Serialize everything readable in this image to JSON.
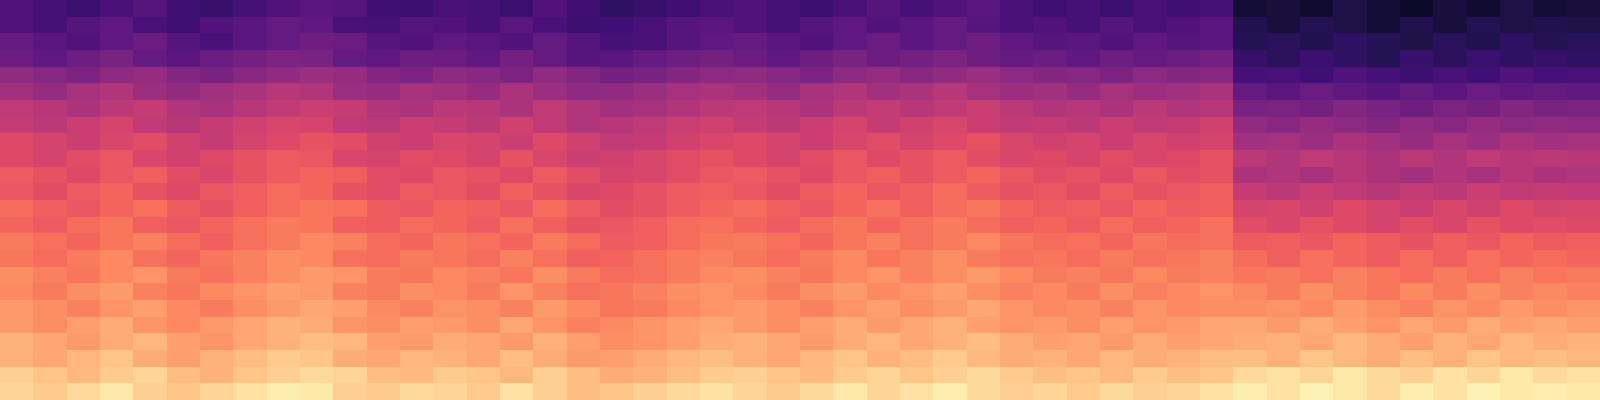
{
  "chart_data": {
    "type": "heatmap",
    "color": "magma",
    "tick_labels": false,
    "zlim": [
      -80,
      0
    ],
    "cells": [
      [
        -60,
        -62,
        -64,
        -61,
        -59,
        -63,
        -65,
        -62,
        -60,
        -58,
        -59,
        -63,
        -64,
        -61,
        -62,
        -64,
        -60,
        -63,
        -66,
        -65,
        -63,
        -61,
        -60,
        -62,
        -64,
        -61,
        -59,
        -62,
        -60,
        -58,
        -61,
        -63,
        -62,
        -64,
        -61,
        -63,
        -62,
        -72,
        -71,
        -73,
        -70,
        -72,
        -74,
        -71,
        -73,
        -70,
        -72,
        -71
      ],
      [
        -60,
        -62,
        -59,
        -57,
        -61,
        -63,
        -60,
        -58,
        -56,
        -57,
        -61,
        -62,
        -59,
        -60,
        -62,
        -58,
        -61,
        -64,
        -63,
        -61,
        -59,
        -58,
        -60,
        -62,
        -59,
        -57,
        -60,
        -58,
        -56,
        -59,
        -61,
        -60,
        -62,
        -59,
        -61,
        -60,
        -58,
        -69,
        -71,
        -68,
        -70,
        -72,
        -69,
        -71,
        -68,
        -70,
        -69,
        -70
      ],
      [
        -56,
        -58,
        -60,
        -57,
        -55,
        -59,
        -61,
        -58,
        -56,
        -54,
        -55,
        -59,
        -60,
        -57,
        -58,
        -60,
        -56,
        -59,
        -62,
        -61,
        -59,
        -57,
        -56,
        -58,
        -60,
        -57,
        -55,
        -58,
        -56,
        -54,
        -57,
        -59,
        -58,
        -60,
        -57,
        -59,
        -58,
        -68,
        -67,
        -69,
        -66,
        -68,
        -70,
        -67,
        -69,
        -66,
        -68,
        -67
      ],
      [
        -55,
        -57,
        -54,
        -52,
        -56,
        -58,
        -55,
        -53,
        -51,
        -52,
        -56,
        -57,
        -54,
        -55,
        -57,
        -53,
        -56,
        -59,
        -58,
        -56,
        -54,
        -53,
        -55,
        -57,
        -54,
        -52,
        -55,
        -53,
        -51,
        -54,
        -56,
        -55,
        -57,
        -54,
        -56,
        -55,
        -53,
        -65,
        -67,
        -64,
        -66,
        -68,
        -65,
        -67,
        -64,
        -66,
        -65,
        -66
      ],
      [
        -47,
        -49,
        -51,
        -48,
        -46,
        -50,
        -52,
        -49,
        -47,
        -45,
        -46,
        -50,
        -51,
        -48,
        -49,
        -51,
        -47,
        -50,
        -53,
        -52,
        -50,
        -48,
        -47,
        -49,
        -51,
        -48,
        -46,
        -49,
        -47,
        -45,
        -48,
        -50,
        -49,
        -51,
        -48,
        -50,
        -49,
        -62,
        -61,
        -63,
        -60,
        -62,
        -64,
        -61,
        -63,
        -60,
        -62,
        -61
      ],
      [
        -44,
        -46,
        -43,
        -41,
        -45,
        -47,
        -44,
        -42,
        -40,
        -41,
        -45,
        -46,
        -43,
        -44,
        -46,
        -42,
        -45,
        -48,
        -47,
        -45,
        -43,
        -42,
        -44,
        -46,
        -43,
        -41,
        -44,
        -42,
        -40,
        -43,
        -45,
        -44,
        -46,
        -43,
        -45,
        -44,
        -42,
        -56,
        -58,
        -55,
        -57,
        -59,
        -56,
        -58,
        -55,
        -57,
        -56,
        -57
      ],
      [
        -38,
        -40,
        -42,
        -39,
        -37,
        -41,
        -43,
        -40,
        -38,
        -36,
        -37,
        -41,
        -42,
        -39,
        -40,
        -42,
        -38,
        -41,
        -44,
        -43,
        -41,
        -39,
        -38,
        -40,
        -42,
        -39,
        -37,
        -40,
        -38,
        -36,
        -39,
        -41,
        -40,
        -42,
        -39,
        -41,
        -40,
        -52,
        -51,
        -53,
        -50,
        -52,
        -54,
        -51,
        -53,
        -50,
        -52,
        -51
      ],
      [
        -37,
        -39,
        -36,
        -34,
        -38,
        -40,
        -37,
        -35,
        -33,
        -34,
        -38,
        -39,
        -36,
        -37,
        -39,
        -35,
        -38,
        -41,
        -40,
        -38,
        -36,
        -35,
        -37,
        -39,
        -36,
        -34,
        -37,
        -35,
        -33,
        -36,
        -38,
        -37,
        -39,
        -36,
        -38,
        -37,
        -35,
        -47,
        -49,
        -46,
        -48,
        -50,
        -47,
        -49,
        -46,
        -48,
        -47,
        -48
      ],
      [
        -32,
        -34,
        -36,
        -33,
        -31,
        -35,
        -37,
        -34,
        -32,
        -30,
        -31,
        -35,
        -36,
        -33,
        -34,
        -36,
        -32,
        -35,
        -38,
        -37,
        -35,
        -33,
        -32,
        -34,
        -36,
        -33,
        -31,
        -34,
        -32,
        -30,
        -33,
        -35,
        -34,
        -36,
        -33,
        -35,
        -34,
        -44,
        -43,
        -45,
        -42,
        -44,
        -46,
        -43,
        -45,
        -42,
        -44,
        -43
      ],
      [
        -32,
        -34,
        -31,
        -29,
        -33,
        -35,
        -32,
        -30,
        -28,
        -29,
        -33,
        -34,
        -31,
        -32,
        -34,
        -30,
        -33,
        -36,
        -35,
        -33,
        -31,
        -30,
        -32,
        -34,
        -31,
        -29,
        -32,
        -30,
        -28,
        -31,
        -33,
        -32,
        -34,
        -31,
        -33,
        -32,
        -30,
        -39,
        -41,
        -38,
        -40,
        -42,
        -39,
        -41,
        -38,
        -40,
        -39,
        -40
      ],
      [
        -28,
        -30,
        -32,
        -29,
        -27,
        -31,
        -33,
        -30,
        -28,
        -26,
        -27,
        -31,
        -32,
        -29,
        -30,
        -32,
        -28,
        -31,
        -34,
        -33,
        -31,
        -29,
        -28,
        -30,
        -32,
        -29,
        -27,
        -30,
        -28,
        -26,
        -29,
        -31,
        -30,
        -32,
        -29,
        -31,
        -30,
        -42,
        -41,
        -43,
        -40,
        -42,
        -44,
        -41,
        -43,
        -40,
        -42,
        -41
      ],
      [
        -29,
        -31,
        -28,
        -26,
        -30,
        -32,
        -29,
        -27,
        -25,
        -26,
        -30,
        -31,
        -28,
        -29,
        -31,
        -27,
        -30,
        -33,
        -32,
        -30,
        -28,
        -27,
        -29,
        -31,
        -28,
        -26,
        -29,
        -27,
        -25,
        -28,
        -30,
        -29,
        -31,
        -28,
        -30,
        -29,
        -27,
        -37,
        -39,
        -36,
        -38,
        -40,
        -37,
        -39,
        -36,
        -38,
        -37,
        -38
      ],
      [
        -25,
        -27,
        -29,
        -26,
        -24,
        -28,
        -30,
        -27,
        -25,
        -23,
        -24,
        -28,
        -29,
        -26,
        -27,
        -29,
        -25,
        -28,
        -31,
        -30,
        -28,
        -26,
        -25,
        -27,
        -29,
        -26,
        -24,
        -27,
        -25,
        -23,
        -26,
        -28,
        -27,
        -29,
        -26,
        -28,
        -27,
        -34,
        -33,
        -35,
        -32,
        -34,
        -36,
        -33,
        -35,
        -32,
        -34,
        -33
      ],
      [
        -26,
        -28,
        -25,
        -23,
        -27,
        -29,
        -26,
        -24,
        -22,
        -23,
        -27,
        -28,
        -25,
        -26,
        -28,
        -24,
        -27,
        -30,
        -29,
        -27,
        -25,
        -24,
        -26,
        -28,
        -25,
        -23,
        -26,
        -24,
        -22,
        -25,
        -27,
        -26,
        -28,
        -25,
        -27,
        -26,
        -24,
        -31,
        -33,
        -30,
        -32,
        -34,
        -31,
        -33,
        -30,
        -32,
        -31,
        -32
      ],
      [
        -22,
        -24,
        -26,
        -23,
        -21,
        -25,
        -27,
        -24,
        -22,
        -20,
        -21,
        -25,
        -26,
        -23,
        -24,
        -26,
        -22,
        -25,
        -28,
        -27,
        -25,
        -23,
        -22,
        -24,
        -26,
        -23,
        -21,
        -24,
        -22,
        -20,
        -23,
        -25,
        -24,
        -26,
        -23,
        -25,
        -24,
        -28,
        -27,
        -29,
        -26,
        -28,
        -30,
        -27,
        -29,
        -26,
        -28,
        -27
      ],
      [
        -23,
        -25,
        -22,
        -20,
        -24,
        -26,
        -23,
        -21,
        -19,
        -20,
        -24,
        -25,
        -22,
        -23,
        -25,
        -21,
        -24,
        -27,
        -26,
        -24,
        -22,
        -21,
        -23,
        -25,
        -22,
        -20,
        -23,
        -21,
        -19,
        -22,
        -24,
        -23,
        -25,
        -22,
        -24,
        -23,
        -21,
        -25,
        -27,
        -24,
        -26,
        -28,
        -25,
        -27,
        -24,
        -26,
        -25,
        -26
      ],
      [
        -19,
        -21,
        -23,
        -20,
        -18,
        -22,
        -24,
        -21,
        -19,
        -17,
        -18,
        -22,
        -23,
        -20,
        -21,
        -23,
        -19,
        -22,
        -25,
        -24,
        -22,
        -20,
        -19,
        -21,
        -23,
        -20,
        -18,
        -21,
        -19,
        -17,
        -20,
        -22,
        -21,
        -23,
        -20,
        -22,
        -21,
        -23,
        -22,
        -24,
        -21,
        -23,
        -25,
        -22,
        -24,
        -21,
        -23,
        -22
      ],
      [
        -20,
        -22,
        -19,
        -17,
        -21,
        -23,
        -20,
        -18,
        -16,
        -17,
        -21,
        -22,
        -19,
        -20,
        -22,
        -18,
        -21,
        -24,
        -23,
        -21,
        -19,
        -18,
        -20,
        -22,
        -19,
        -17,
        -20,
        -18,
        -16,
        -19,
        -21,
        -20,
        -22,
        -19,
        -21,
        -20,
        -18,
        -20,
        -22,
        -19,
        -21,
        -23,
        -20,
        -22,
        -19,
        -21,
        -20,
        -21
      ],
      [
        -17,
        -19,
        -21,
        -18,
        -16,
        -20,
        -22,
        -19,
        -17,
        -15,
        -16,
        -20,
        -21,
        -18,
        -19,
        -21,
        -17,
        -20,
        -23,
        -22,
        -20,
        -18,
        -17,
        -19,
        -21,
        -18,
        -16,
        -19,
        -17,
        -15,
        -18,
        -20,
        -19,
        -21,
        -18,
        -20,
        -19,
        -19,
        -18,
        -20,
        -17,
        -19,
        -21,
        -18,
        -20,
        -17,
        -19,
        -18
      ],
      [
        -17,
        -19,
        -16,
        -14,
        -18,
        -20,
        -17,
        -15,
        -13,
        -14,
        -18,
        -19,
        -16,
        -17,
        -19,
        -15,
        -18,
        -21,
        -20,
        -18,
        -16,
        -15,
        -17,
        -19,
        -16,
        -14,
        -17,
        -15,
        -13,
        -16,
        -18,
        -17,
        -19,
        -16,
        -18,
        -17,
        -15,
        -15,
        -17,
        -14,
        -16,
        -18,
        -15,
        -17,
        -14,
        -16,
        -15,
        -16
      ],
      [
        -13,
        -15,
        -17,
        -14,
        -12,
        -16,
        -18,
        -15,
        -13,
        -11,
        -12,
        -16,
        -17,
        -14,
        -15,
        -17,
        -13,
        -16,
        -19,
        -18,
        -16,
        -14,
        -13,
        -15,
        -17,
        -14,
        -12,
        -15,
        -13,
        -11,
        -14,
        -16,
        -15,
        -17,
        -14,
        -16,
        -15,
        -14,
        -13,
        -15,
        -12,
        -14,
        -16,
        -13,
        -15,
        -12,
        -14,
        -13
      ],
      [
        -13,
        -15,
        -12,
        -10,
        -14,
        -16,
        -13,
        -11,
        -9,
        -10,
        -14,
        -15,
        -12,
        -13,
        -15,
        -11,
        -14,
        -17,
        -16,
        -14,
        -12,
        -11,
        -13,
        -15,
        -12,
        -10,
        -13,
        -11,
        -9,
        -12,
        -14,
        -13,
        -15,
        -12,
        -14,
        -13,
        -11,
        -11,
        -13,
        -10,
        -12,
        -14,
        -11,
        -13,
        -10,
        -12,
        -11,
        -12
      ],
      [
        -8,
        -10,
        -12,
        -9,
        -7,
        -11,
        -13,
        -10,
        -8,
        -6,
        -7,
        -11,
        -12,
        -9,
        -10,
        -12,
        -8,
        -11,
        -14,
        -13,
        -11,
        -9,
        -8,
        -10,
        -12,
        -9,
        -7,
        -10,
        -8,
        -6,
        -9,
        -11,
        -10,
        -12,
        -9,
        -11,
        -10,
        -6,
        -5,
        -7,
        -4,
        -6,
        -8,
        -5,
        -7,
        -4,
        -6,
        -5
      ],
      [
        -7,
        -9,
        -6,
        -4,
        -8,
        -10,
        -7,
        -5,
        -3,
        -4,
        -8,
        -9,
        -6,
        -7,
        -9,
        -5,
        -8,
        -11,
        -10,
        -8,
        -6,
        -5,
        -7,
        -9,
        -6,
        -4,
        -7,
        -5,
        -3,
        -6,
        -8,
        -7,
        -9,
        -6,
        -8,
        -7,
        -5,
        -3,
        -5,
        -2,
        -4,
        -6,
        -3,
        -5,
        -2,
        -4,
        -3,
        -4
      ]
    ]
  }
}
